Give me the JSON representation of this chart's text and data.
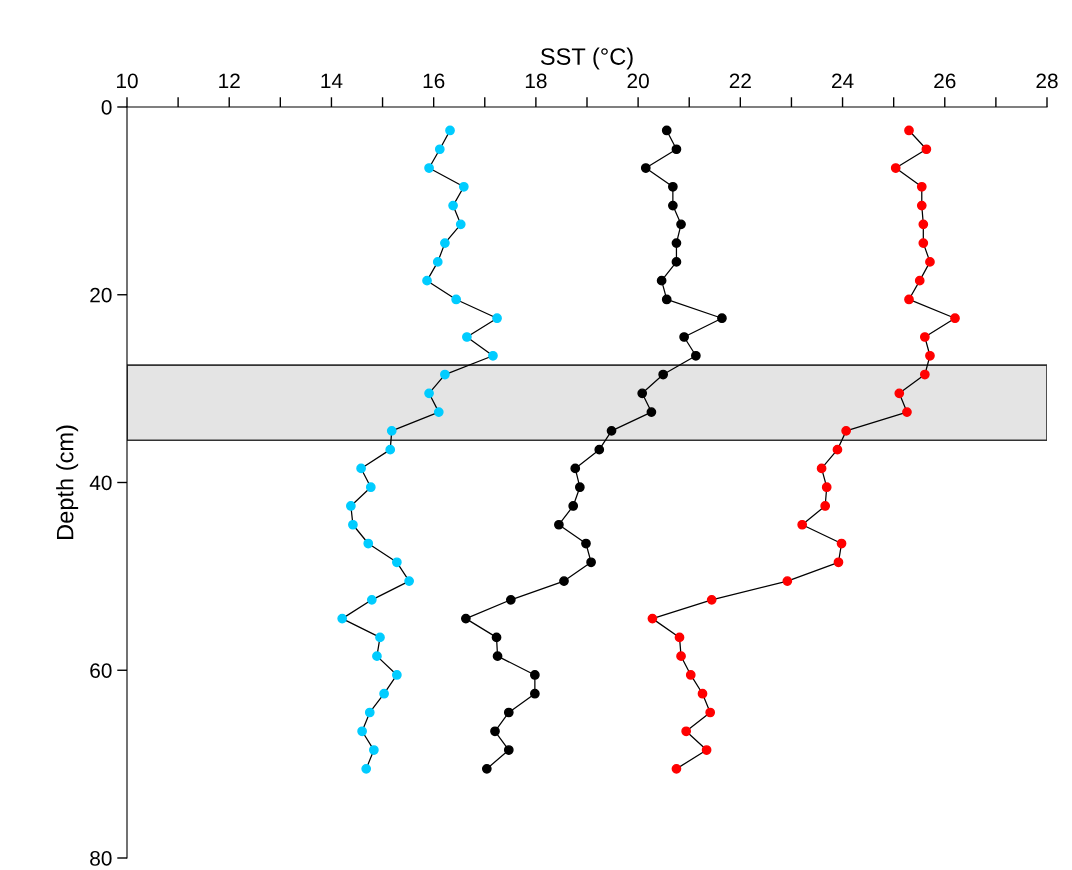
{
  "chart_data": {
    "type": "line",
    "xlabel": "SST (°C)",
    "ylabel": "Depth (cm)",
    "marker": "circle",
    "line_style": "solid",
    "grid": false,
    "xlim": [
      10,
      28
    ],
    "xticks": [
      10,
      {
        "value": 11,
        "label": null
      },
      12,
      {
        "value": 13,
        "label": null
      },
      14,
      {
        "value": 15,
        "label": null
      },
      16,
      {
        "value": 17,
        "label": null
      },
      18,
      {
        "value": 19,
        "label": null
      },
      20,
      {
        "value": 21,
        "label": null
      },
      22,
      {
        "value": 23,
        "label": null
      },
      24,
      {
        "value": 25,
        "label": null
      },
      26,
      {
        "value": 27,
        "label": null
      },
      28
    ],
    "ylim": [
      80,
      0
    ],
    "yticks": [
      0,
      20,
      40,
      60,
      80
    ],
    "bands": [
      {
        "axis": "y",
        "from": 27.5,
        "to": 35.5,
        "color": "#e4e4e4"
      }
    ],
    "series": [
      {
        "color": "#00ccff",
        "x": [
          16.32,
          16.12,
          15.91,
          16.59,
          16.38,
          16.53,
          16.22,
          16.08,
          15.87,
          16.44,
          17.24,
          16.65,
          17.16,
          16.22,
          15.91,
          16.1,
          15.18,
          15.15,
          14.58,
          14.77,
          14.38,
          14.42,
          14.72,
          15.28,
          15.52,
          14.79,
          14.21,
          14.95,
          14.89,
          15.28,
          15.03,
          14.75,
          14.6,
          14.83,
          14.68
        ],
        "values": [
          2.5,
          4.5,
          6.5,
          8.5,
          10.5,
          12.5,
          14.5,
          16.5,
          18.5,
          20.5,
          22.5,
          24.5,
          26.5,
          28.5,
          30.5,
          32.5,
          34.5,
          36.5,
          38.5,
          40.5,
          42.5,
          44.5,
          46.5,
          48.5,
          50.5,
          52.5,
          54.5,
          56.5,
          58.5,
          60.5,
          62.5,
          64.5,
          66.5,
          68.5,
          70.5
        ]
      },
      {
        "color": "#000000",
        "x": [
          20.56,
          20.75,
          20.15,
          20.68,
          20.68,
          20.84,
          20.75,
          20.75,
          20.46,
          20.56,
          21.64,
          20.9,
          21.13,
          20.49,
          20.08,
          20.26,
          19.48,
          19.24,
          18.77,
          18.86,
          18.73,
          18.45,
          18.98,
          19.08,
          18.55,
          17.51,
          16.63,
          17.23,
          17.25,
          17.98,
          17.98,
          17.47,
          17.2,
          17.47,
          17.04
        ],
        "values": [
          2.5,
          4.5,
          6.5,
          8.5,
          10.5,
          12.5,
          14.5,
          16.5,
          18.5,
          20.5,
          22.5,
          24.5,
          26.5,
          28.5,
          30.5,
          32.5,
          34.5,
          36.5,
          38.5,
          40.5,
          42.5,
          44.5,
          46.5,
          48.5,
          50.5,
          52.5,
          54.5,
          56.5,
          58.5,
          60.5,
          62.5,
          64.5,
          66.5,
          68.5,
          70.5
        ]
      },
      {
        "color": "#ff0000",
        "x": [
          25.3,
          25.64,
          25.04,
          25.55,
          25.55,
          25.58,
          25.58,
          25.71,
          25.51,
          25.3,
          26.2,
          25.61,
          25.71,
          25.61,
          25.11,
          25.26,
          24.07,
          23.9,
          23.59,
          23.69,
          23.66,
          23.21,
          23.98,
          23.92,
          22.92,
          21.44,
          20.28,
          20.81,
          20.84,
          21.03,
          21.26,
          21.41,
          20.94,
          21.34,
          20.75
        ],
        "values": [
          2.5,
          4.5,
          6.5,
          8.5,
          10.5,
          12.5,
          14.5,
          16.5,
          18.5,
          20.5,
          22.5,
          24.5,
          26.5,
          28.5,
          30.5,
          32.5,
          34.5,
          36.5,
          38.5,
          40.5,
          42.5,
          44.5,
          46.5,
          48.5,
          50.5,
          52.5,
          54.5,
          56.5,
          58.5,
          60.5,
          62.5,
          64.5,
          66.5,
          68.5,
          70.5
        ]
      }
    ]
  }
}
